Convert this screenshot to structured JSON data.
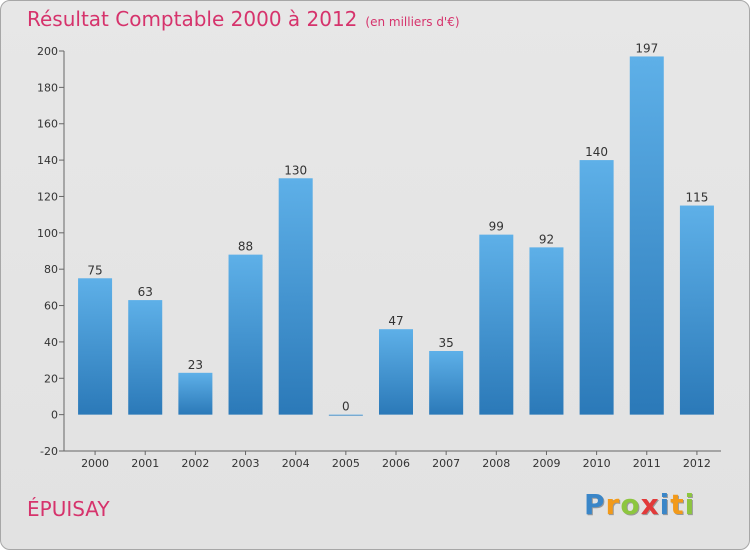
{
  "title": "Résultat Comptable 2000 à 2012",
  "subtitle": "(en milliers d'€)",
  "location": "ÉPUISAY",
  "logo": {
    "text": "Proxiti",
    "letters": [
      {
        "ch": "P",
        "color": "#3a86c8"
      },
      {
        "ch": "r",
        "color": "#f29a1a"
      },
      {
        "ch": "o",
        "color": "#8dc63f"
      },
      {
        "ch": "x",
        "color": "#e23a3a"
      },
      {
        "ch": "i",
        "color": "#3a86c8"
      },
      {
        "ch": "t",
        "color": "#f29a1a"
      },
      {
        "ch": "i",
        "color": "#8dc63f"
      }
    ]
  },
  "colors": {
    "bar_top": "#5eb0e8",
    "bar_bottom": "#2b79b8",
    "title": "#d6336c"
  },
  "chart_data": {
    "type": "bar",
    "categories": [
      "2000",
      "2001",
      "2002",
      "2003",
      "2004",
      "2005",
      "2006",
      "2007",
      "2008",
      "2009",
      "2010",
      "2011",
      "2012"
    ],
    "values": [
      75,
      63,
      23,
      88,
      130,
      0,
      47,
      35,
      99,
      92,
      140,
      197,
      115
    ],
    "ylim": [
      -20,
      200
    ],
    "yticks": [
      -20,
      0,
      20,
      40,
      60,
      80,
      100,
      120,
      140,
      160,
      180,
      200
    ],
    "grid": false,
    "title": "Résultat Comptable 2000 à 2012",
    "xlabel": "",
    "ylabel": ""
  }
}
